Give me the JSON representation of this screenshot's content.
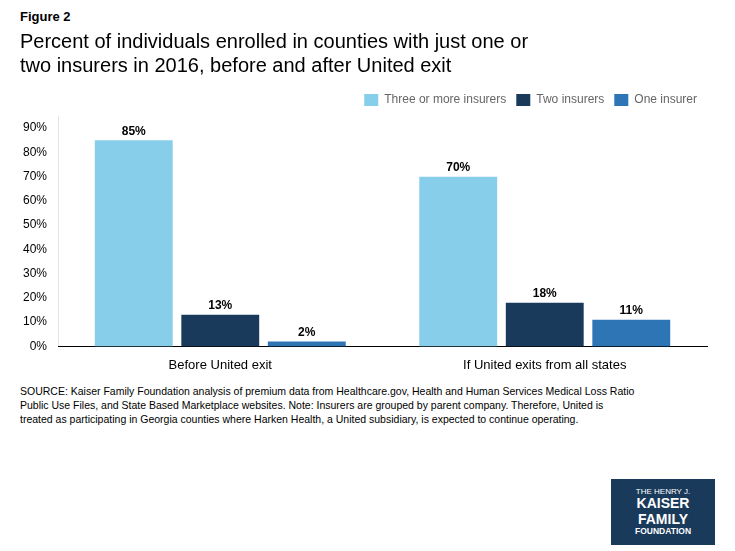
{
  "chart_data": {
    "type": "bar",
    "title": "Percent of individuals enrolled in counties with just one or\ntwo insurers in 2016, before and after United exit",
    "annotations": [
      "Figure 2",
      "SOURCE: Kaiser Family Foundation analysis of premium data from Healthcare.gov, Health and Human Services Medical Loss Ratio\nPublic Use Files, and State Based Marketplace websites. Note: Insurers are grouped by parent company. Therefore, United is\ntreated as participating in Georgia counties where Harken Health, a United subsidiary, is expected to continue operating.",
      "THE HENRY J.",
      "KAISER",
      "FAMILY",
      "FOUNDATION"
    ],
    "categories": [
      "Before United exit",
      "If United exits from all states"
    ],
    "series": [
      {
        "name": "Three or more insurers",
        "color": "#87CEEB",
        "values": [
          85,
          70
        ],
        "value_labels": [
          "85%",
          "70%"
        ]
      },
      {
        "name": "Two insurers",
        "color": "#1A3A5C",
        "values": [
          13,
          18
        ],
        "value_labels": [
          "13%",
          "18%"
        ]
      },
      {
        "name": "One insurer",
        "color": "#2E75B6",
        "values": [
          2,
          11
        ],
        "value_labels": [
          "2%",
          "11%"
        ]
      }
    ],
    "ylim": [
      0,
      95
    ],
    "yticks": [
      {
        "value": 0,
        "label": "0%"
      },
      {
        "value": 10,
        "label": "10%"
      },
      {
        "value": 20,
        "label": "20%"
      },
      {
        "value": 30,
        "label": "30%"
      },
      {
        "value": 40,
        "label": "40%"
      },
      {
        "value": 50,
        "label": "50%"
      },
      {
        "value": 60,
        "label": "60%"
      },
      {
        "value": 70,
        "label": "70%"
      },
      {
        "value": 80,
        "label": "80%"
      },
      {
        "value": 90,
        "label": "90%"
      }
    ],
    "grid": false,
    "legend": "upper right",
    "data_labels": true
  }
}
